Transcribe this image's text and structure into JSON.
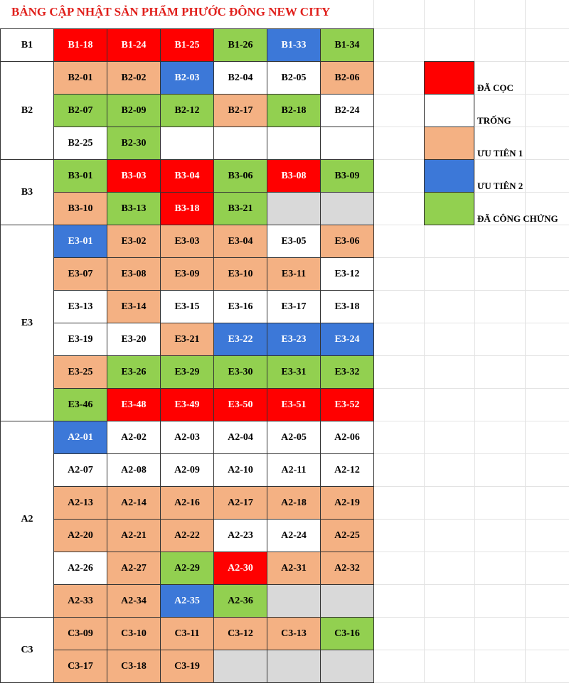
{
  "title": "BẢNG CẬP NHẬT SẢN PHẨM PHƯỚC ĐÔNG NEW CITY",
  "groups": [
    {
      "label": "B1",
      "rows": [
        [
          {
            "label": "B1-18",
            "color": "#ff0000"
          },
          {
            "label": "B1-24",
            "color": "#ff0000"
          },
          {
            "label": "B1-25",
            "color": "#ff0000"
          },
          {
            "label": "B1-26",
            "color": "#92d050"
          },
          {
            "label": "B1-33",
            "color": "#3c78d8"
          },
          {
            "label": "B1-34",
            "color": "#92d050"
          }
        ]
      ]
    },
    {
      "label": "B2",
      "rows": [
        [
          {
            "label": "B2-01",
            "color": "#f4b183"
          },
          {
            "label": "B2-02",
            "color": "#f4b183"
          },
          {
            "label": "B2-03",
            "color": "#3c78d8"
          },
          {
            "label": "B2-04",
            "color": "#ffffff"
          },
          {
            "label": "B2-05",
            "color": "#ffffff"
          },
          {
            "label": "B2-06",
            "color": "#f4b183"
          }
        ],
        [
          {
            "label": "B2-07",
            "color": "#92d050"
          },
          {
            "label": "B2-09",
            "color": "#92d050"
          },
          {
            "label": "B2-12",
            "color": "#92d050"
          },
          {
            "label": "B2-17",
            "color": "#f4b183"
          },
          {
            "label": "B2-18",
            "color": "#92d050"
          },
          {
            "label": "B2-24",
            "color": "#ffffff"
          }
        ],
        [
          {
            "label": "B2-25",
            "color": "#ffffff"
          },
          {
            "label": "B2-30",
            "color": "#92d050"
          },
          {
            "color": "#ffffff"
          },
          {
            "color": "#ffffff"
          },
          {
            "color": "#ffffff"
          },
          {
            "color": "#ffffff"
          }
        ]
      ]
    },
    {
      "label": "B3",
      "rows": [
        [
          {
            "label": "B3-01",
            "color": "#92d050"
          },
          {
            "label": "B3-03",
            "color": "#ff0000"
          },
          {
            "label": "B3-04",
            "color": "#ff0000"
          },
          {
            "label": "B3-06",
            "color": "#92d050"
          },
          {
            "label": "B3-08",
            "color": "#ff0000"
          },
          {
            "label": "B3-09",
            "color": "#92d050"
          }
        ],
        [
          {
            "label": "B3-10",
            "color": "#f4b183"
          },
          {
            "label": "B3-13",
            "color": "#92d050"
          },
          {
            "label": "B3-18",
            "color": "#ff0000"
          },
          {
            "label": "B3-21",
            "color": "#92d050"
          },
          {
            "color": "#d9d9d9"
          },
          {
            "color": "#d9d9d9"
          }
        ]
      ]
    },
    {
      "label": "E3",
      "rows": [
        [
          {
            "label": "E3-01",
            "color": "#3c78d8"
          },
          {
            "label": "E3-02",
            "color": "#f4b183"
          },
          {
            "label": "E3-03",
            "color": "#f4b183"
          },
          {
            "label": "E3-04",
            "color": "#f4b183"
          },
          {
            "label": "E3-05",
            "color": "#ffffff"
          },
          {
            "label": "E3-06",
            "color": "#f4b183"
          }
        ],
        [
          {
            "label": "E3-07",
            "color": "#f4b183"
          },
          {
            "label": "E3-08",
            "color": "#f4b183"
          },
          {
            "label": "E3-09",
            "color": "#f4b183"
          },
          {
            "label": "E3-10",
            "color": "#f4b183"
          },
          {
            "label": "E3-11",
            "color": "#f4b183"
          },
          {
            "label": "E3-12",
            "color": "#ffffff"
          }
        ],
        [
          {
            "label": "E3-13",
            "color": "#ffffff"
          },
          {
            "label": "E3-14",
            "color": "#f4b183"
          },
          {
            "label": "E3-15",
            "color": "#ffffff"
          },
          {
            "label": "E3-16",
            "color": "#ffffff"
          },
          {
            "label": "E3-17",
            "color": "#ffffff"
          },
          {
            "label": "E3-18",
            "color": "#ffffff"
          }
        ],
        [
          {
            "label": "E3-19",
            "color": "#ffffff"
          },
          {
            "label": "E3-20",
            "color": "#ffffff"
          },
          {
            "label": "E3-21",
            "color": "#f4b183"
          },
          {
            "label": "E3-22",
            "color": "#3c78d8"
          },
          {
            "label": "E3-23",
            "color": "#3c78d8"
          },
          {
            "label": "E3-24",
            "color": "#3c78d8"
          }
        ],
        [
          {
            "label": "E3-25",
            "color": "#f4b183"
          },
          {
            "label": "E3-26",
            "color": "#92d050"
          },
          {
            "label": "E3-29",
            "color": "#92d050"
          },
          {
            "label": "E3-30",
            "color": "#92d050"
          },
          {
            "label": "E3-31",
            "color": "#92d050"
          },
          {
            "label": "E3-32",
            "color": "#92d050"
          }
        ],
        [
          {
            "label": "E3-46",
            "color": "#92d050"
          },
          {
            "label": "E3-48",
            "color": "#ff0000"
          },
          {
            "label": "E3-49",
            "color": "#ff0000"
          },
          {
            "label": "E3-50",
            "color": "#ff0000"
          },
          {
            "label": "E3-51",
            "color": "#ff0000"
          },
          {
            "label": "E3-52",
            "color": "#ff0000"
          }
        ]
      ]
    },
    {
      "label": "A2",
      "rows": [
        [
          {
            "label": "A2-01",
            "color": "#3c78d8"
          },
          {
            "label": "A2-02",
            "color": "#ffffff"
          },
          {
            "label": "A2-03",
            "color": "#ffffff"
          },
          {
            "label": "A2-04",
            "color": "#ffffff"
          },
          {
            "label": "A2-05",
            "color": "#ffffff"
          },
          {
            "label": "A2-06",
            "color": "#ffffff"
          }
        ],
        [
          {
            "label": "A2-07",
            "color": "#ffffff"
          },
          {
            "label": "A2-08",
            "color": "#ffffff"
          },
          {
            "label": "A2-09",
            "color": "#ffffff"
          },
          {
            "label": "A2-10",
            "color": "#ffffff"
          },
          {
            "label": "A2-11",
            "color": "#ffffff"
          },
          {
            "label": "A2-12",
            "color": "#ffffff"
          }
        ],
        [
          {
            "label": "A2-13",
            "color": "#f4b183"
          },
          {
            "label": "A2-14",
            "color": "#f4b183"
          },
          {
            "label": "A2-16",
            "color": "#f4b183"
          },
          {
            "label": "A2-17",
            "color": "#f4b183"
          },
          {
            "label": "A2-18",
            "color": "#f4b183"
          },
          {
            "label": "A2-19",
            "color": "#f4b183"
          }
        ],
        [
          {
            "label": "A2-20",
            "color": "#f4b183"
          },
          {
            "label": "A2-21",
            "color": "#f4b183"
          },
          {
            "label": "A2-22",
            "color": "#f4b183"
          },
          {
            "label": "A2-23",
            "color": "#ffffff"
          },
          {
            "label": "A2-24",
            "color": "#ffffff"
          },
          {
            "label": "A2-25",
            "color": "#f4b183"
          }
        ],
        [
          {
            "label": "A2-26",
            "color": "#ffffff"
          },
          {
            "label": "A2-27",
            "color": "#f4b183"
          },
          {
            "label": "A2-29",
            "color": "#92d050"
          },
          {
            "label": "A2-30",
            "color": "#ff0000"
          },
          {
            "label": "A2-31",
            "color": "#f4b183"
          },
          {
            "label": "A2-32",
            "color": "#f4b183"
          }
        ],
        [
          {
            "label": "A2-33",
            "color": "#f4b183"
          },
          {
            "label": "A2-34",
            "color": "#f4b183"
          },
          {
            "label": "A2-35",
            "color": "#3c78d8"
          },
          {
            "label": "A2-36",
            "color": "#92d050"
          },
          {
            "color": "#d9d9d9"
          },
          {
            "color": "#d9d9d9"
          }
        ]
      ]
    },
    {
      "label": "C3",
      "rows": [
        [
          {
            "label": "C3-09",
            "color": "#f4b183"
          },
          {
            "label": "C3-10",
            "color": "#f4b183"
          },
          {
            "label": "C3-11",
            "color": "#f4b183"
          },
          {
            "label": "C3-12",
            "color": "#f4b183"
          },
          {
            "label": "C3-13",
            "color": "#f4b183"
          },
          {
            "label": "C3-16",
            "color": "#92d050"
          }
        ],
        [
          {
            "label": "C3-17",
            "color": "#f4b183"
          },
          {
            "label": "C3-18",
            "color": "#f4b183"
          },
          {
            "label": "C3-19",
            "color": "#f4b183"
          },
          {
            "color": "#d9d9d9"
          },
          {
            "color": "#d9d9d9"
          },
          {
            "color": "#d9d9d9"
          }
        ]
      ]
    }
  ],
  "legend": [
    {
      "label": "ĐÃ CỌC",
      "color": "#ff0000"
    },
    {
      "label": "TRỐNG",
      "color": "#ffffff"
    },
    {
      "label": "ƯU TIÊN 1",
      "color": "#f4b183"
    },
    {
      "label": "ƯU TIÊN 2",
      "color": "#3c78d8"
    },
    {
      "label": "ĐÃ CÔNG CHỨNG",
      "color": "#92d050"
    }
  ]
}
